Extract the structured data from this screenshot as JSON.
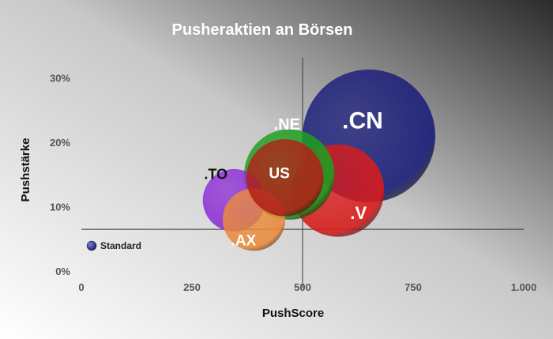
{
  "chart_data": {
    "type": "scatter",
    "subtype": "bubble",
    "title": "Pusheraktien an Börsen",
    "xlabel": "PushScore",
    "ylabel": "Pushstärke",
    "xlim": [
      0,
      1000
    ],
    "ylim": [
      0,
      0.35
    ],
    "x_ticks": [
      0,
      250,
      500,
      750,
      1000
    ],
    "x_tick_labels": [
      "0",
      "250",
      "500",
      "750",
      "1.000"
    ],
    "y_ticks": [
      0,
      0.1,
      0.2,
      0.3
    ],
    "y_tick_labels": [
      "0%",
      "10%",
      "20%",
      "30%"
    ],
    "reference_lines": {
      "x": 500,
      "y": 0.065
    },
    "legend": {
      "position": "bottom-left",
      "entries": [
        "Standard"
      ]
    },
    "grid": false,
    "series": [
      {
        "name": "Standard",
        "color": "#2c2f8a",
        "points": [
          {
            "label": ".CN",
            "x": 650,
            "y": 0.21,
            "size": 9.5,
            "color": "#1b1e7a",
            "label_color": "#ffffff",
            "label_size": 30
          },
          {
            "label": ".V",
            "x": 580,
            "y": 0.125,
            "size": 4.6,
            "color": "#d81c1c",
            "label_color": "#ffffff",
            "label_size": 22
          },
          {
            "label": ".NE",
            "x": 470,
            "y": 0.15,
            "size": 4.4,
            "color": "#1e9e1e",
            "label_color": "#ffffff",
            "label_size": 20
          },
          {
            "label": ".TO",
            "x": 345,
            "y": 0.11,
            "size": 2.1,
            "color": "#8e2fd6",
            "label_color": "#111111",
            "label_size": 18
          },
          {
            "label": ".AX",
            "x": 390,
            "y": 0.08,
            "size": 2.1,
            "color": "#ea8a3c",
            "label_color": "#ffffff",
            "label_size": 19
          },
          {
            "label": "US",
            "x": 460,
            "y": 0.145,
            "size": 3.2,
            "color": "#b02218",
            "label_color": "#ffffff",
            "label_size": 19
          }
        ]
      }
    ]
  }
}
